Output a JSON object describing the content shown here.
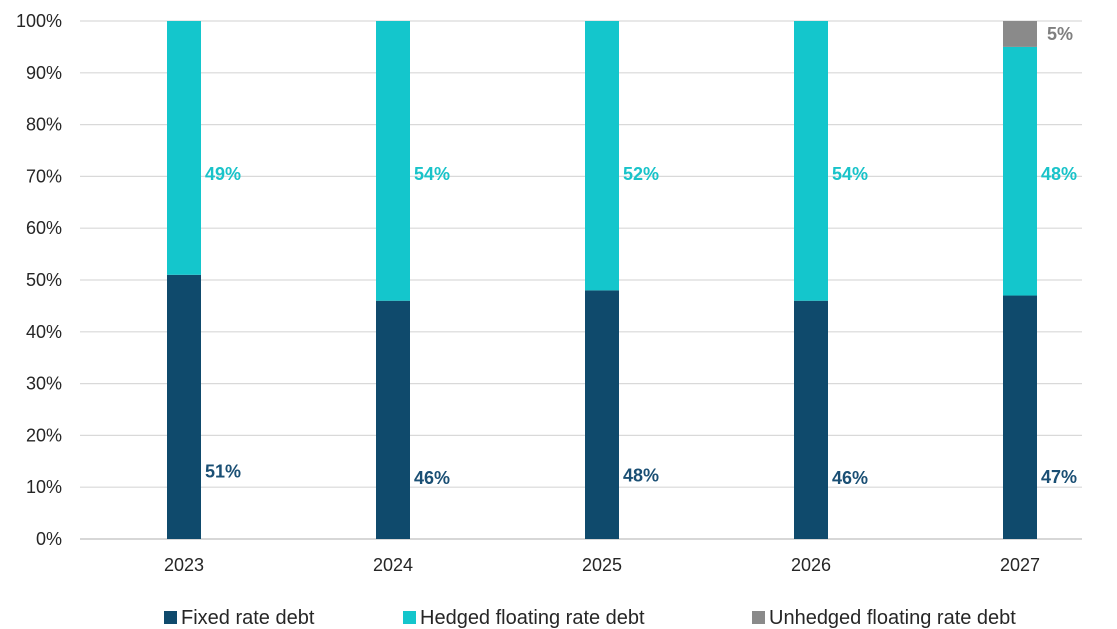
{
  "chart_data": {
    "type": "bar",
    "stacked": true,
    "categories": [
      "2023",
      "2024",
      "2025",
      "2026",
      "2027"
    ],
    "series": [
      {
        "name": "Fixed rate debt",
        "color": "#0f4a6c",
        "label_color": "#1a4f74",
        "values": [
          51,
          46,
          48,
          46,
          47
        ],
        "labels": [
          "51%",
          "46%",
          "48%",
          "46%",
          "47%"
        ]
      },
      {
        "name": "Hedged floating rate debt",
        "color": "#14c6cc",
        "label_color": "#19c3c9",
        "values": [
          49,
          54,
          52,
          54,
          48
        ],
        "labels": [
          "49%",
          "54%",
          "52%",
          "54%",
          "48%"
        ]
      },
      {
        "name": "Unhedged floating rate debt",
        "color": "#8a8a8a",
        "label_color": "#7f7f7f",
        "values": [
          0,
          0,
          0,
          0,
          5
        ],
        "labels": [
          "",
          "",
          "",
          "",
          "5%"
        ]
      }
    ],
    "yticks": [
      "0%",
      "10%",
      "20%",
      "30%",
      "40%",
      "50%",
      "60%",
      "70%",
      "80%",
      "90%",
      "100%"
    ],
    "ylim": [
      0,
      100
    ],
    "grid": true,
    "legend_position": "bottom",
    "title": "",
    "xlabel": "",
    "ylabel": ""
  }
}
